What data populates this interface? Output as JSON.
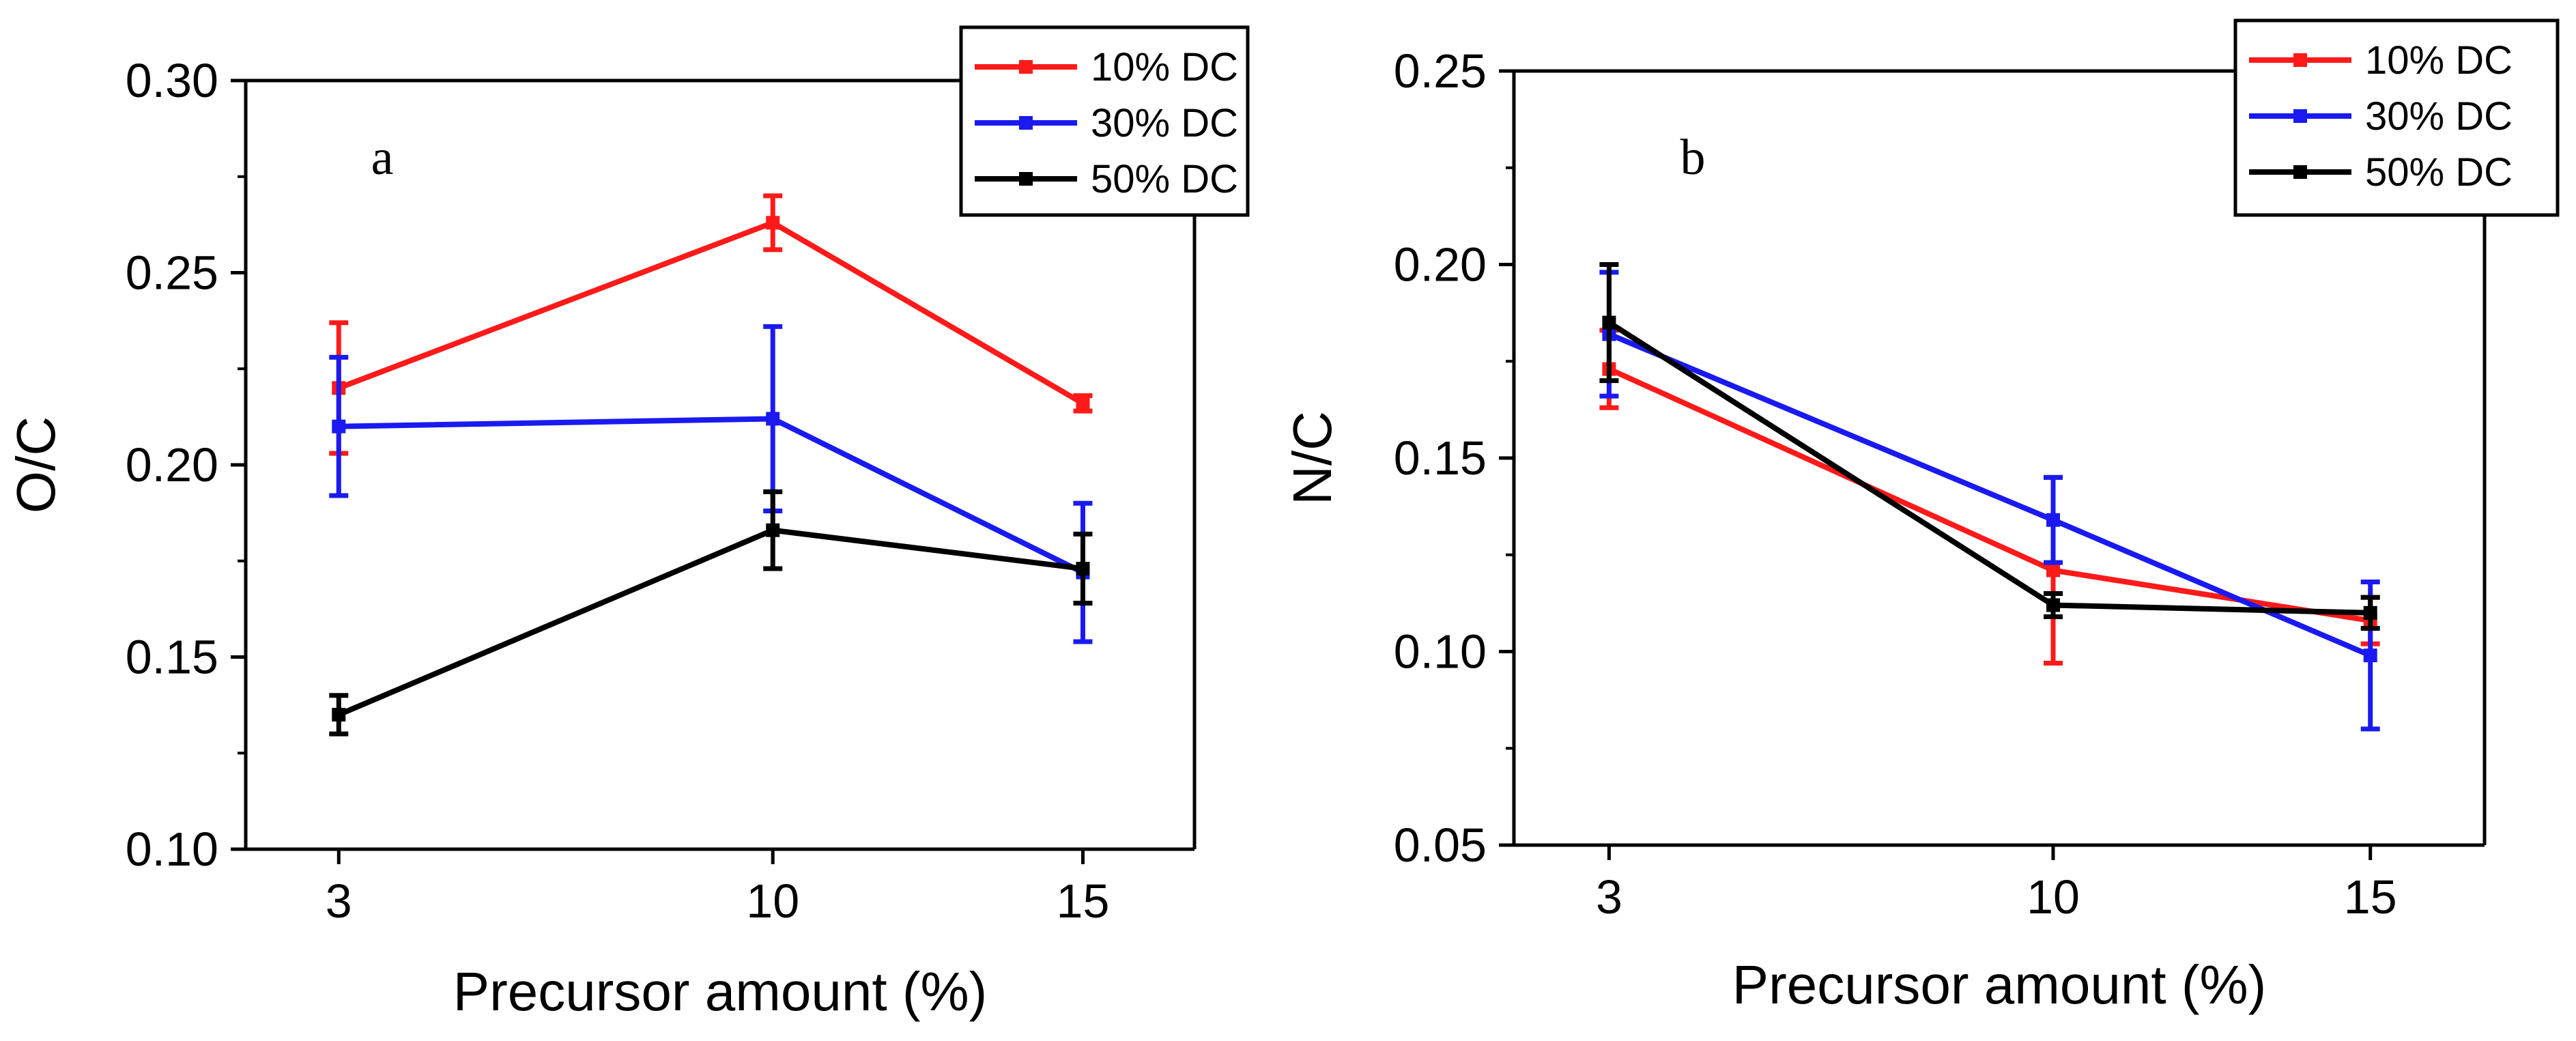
{
  "colors": {
    "10% DC": "#ff1a1a",
    "30% DC": "#1a1af0",
    "50% DC": "#000000"
  },
  "chart_data": [
    {
      "type": "line",
      "panel_label": "a",
      "xlabel": "Precursor amount (%)",
      "ylabel": "O/C",
      "x": [
        3,
        10,
        15
      ],
      "x_tick_labels": [
        "3",
        "10",
        "15"
      ],
      "xlim": [
        1.5,
        16.8
      ],
      "ylim": [
        0.1,
        0.3
      ],
      "y_ticks": [
        "0.10",
        "0.15",
        "0.20",
        "0.25",
        "0.30"
      ],
      "legend_position": "top-right",
      "series": [
        {
          "name": "10% DC",
          "values": [
            0.22,
            0.263,
            0.216
          ],
          "errors": [
            0.017,
            0.007,
            0.002
          ]
        },
        {
          "name": "30% DC",
          "values": [
            0.21,
            0.212,
            0.172
          ],
          "errors": [
            0.018,
            0.024,
            0.018
          ]
        },
        {
          "name": "50% DC",
          "values": [
            0.135,
            0.183,
            0.173
          ],
          "errors": [
            0.005,
            0.01,
            0.009
          ]
        }
      ]
    },
    {
      "type": "line",
      "panel_label": "b",
      "xlabel": "Precursor amount (%)",
      "ylabel": "N/C",
      "x": [
        3,
        10,
        15
      ],
      "x_tick_labels": [
        "3",
        "10",
        "15"
      ],
      "xlim": [
        1.5,
        16.8
      ],
      "ylim": [
        0.05,
        0.25
      ],
      "y_ticks": [
        "0.05",
        "0.10",
        "0.15",
        "0.20",
        "0.25"
      ],
      "legend_position": "top-right",
      "series": [
        {
          "name": "10% DC",
          "values": [
            0.173,
            0.121,
            0.108
          ],
          "errors": [
            0.01,
            0.024,
            0.006
          ]
        },
        {
          "name": "30% DC",
          "values": [
            0.182,
            0.134,
            0.099
          ],
          "errors": [
            0.016,
            0.011,
            0.019
          ]
        },
        {
          "name": "50% DC",
          "values": [
            0.185,
            0.112,
            0.11
          ],
          "errors": [
            0.015,
            0.003,
            0.004
          ]
        }
      ]
    }
  ]
}
